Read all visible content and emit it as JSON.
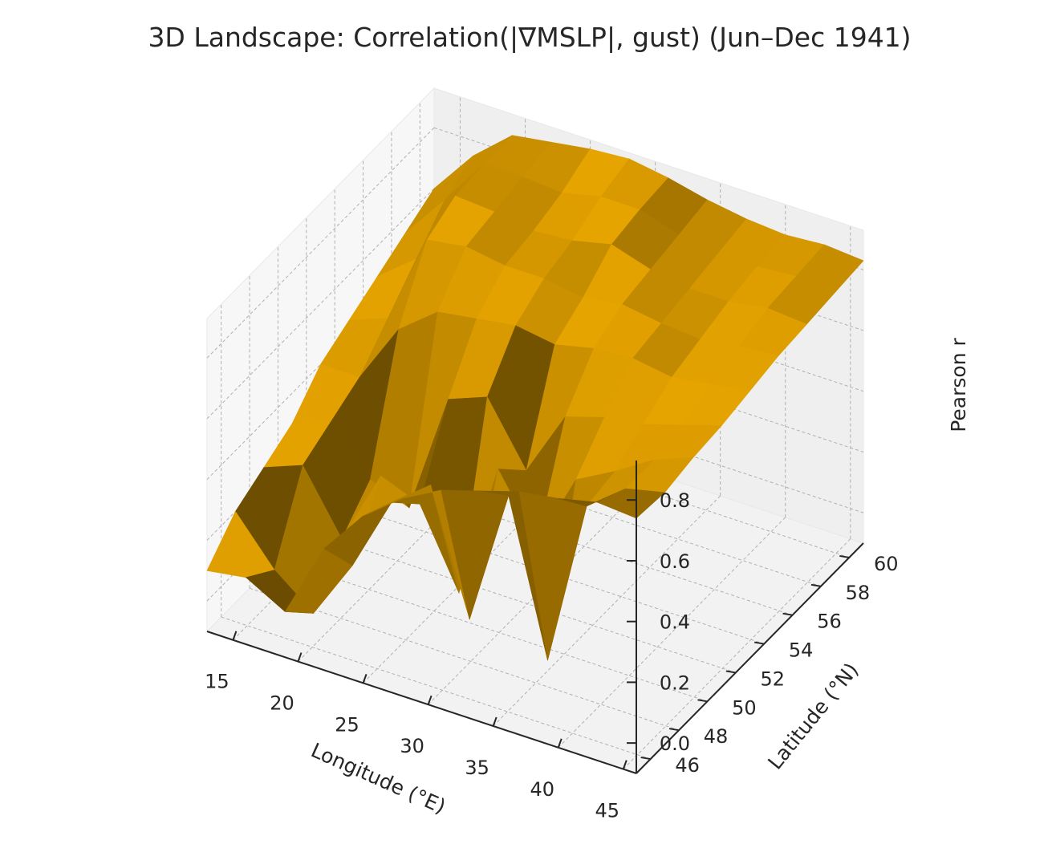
{
  "chart_data": {
    "type": "surface3d",
    "title": "3D Landscape: Correlation(|∇MSLP|, gust) (Jun–Dec 1941)",
    "xlabel": "Longitude (°E)",
    "ylabel": "Latitude (°N)",
    "zlabel": "Pearson r",
    "xlim": [
      13,
      46
    ],
    "ylim": [
      45,
      61
    ],
    "zlim": [
      -0.1,
      0.93
    ],
    "x_ticks": [
      15,
      20,
      25,
      30,
      35,
      40,
      45
    ],
    "y_ticks": [
      46,
      48,
      50,
      52,
      54,
      56,
      58,
      60
    ],
    "z_ticks": [
      0.0,
      0.2,
      0.4,
      0.6,
      0.8
    ],
    "x_tick_labels": [
      "15",
      "20",
      "25",
      "30",
      "35",
      "40",
      "45"
    ],
    "y_tick_labels": [
      "46",
      "48",
      "50",
      "52",
      "54",
      "56",
      "58",
      "60"
    ],
    "z_tick_labels": [
      "0.0",
      "0.2",
      "0.4",
      "0.6",
      "0.8"
    ],
    "grid": true,
    "surface_color": "#e6a400",
    "pane_color": "#f2f2f2",
    "grid_x": [
      13,
      16,
      19,
      22,
      25,
      28,
      31,
      34,
      37,
      40,
      43,
      46
    ],
    "grid_y": [
      45,
      47,
      49,
      51,
      53,
      55,
      57,
      59,
      61
    ],
    "z": [
      [
        0.1,
        0.12,
        0.05,
        0.3,
        0.45,
        0.55,
        0.62,
        0.66,
        0.7,
        0.72,
        0.75,
        0.74
      ],
      [
        0.2,
        0.05,
        -0.05,
        0.15,
        0.4,
        0.5,
        0.1,
        0.55,
        0.05,
        0.6,
        0.7,
        0.73
      ],
      [
        0.25,
        0.3,
        0.1,
        0.35,
        0.3,
        0.05,
        0.5,
        0.3,
        0.55,
        0.62,
        0.7,
        0.75
      ],
      [
        0.3,
        0.35,
        0.2,
        0.15,
        0.55,
        0.6,
        0.4,
        0.62,
        0.66,
        0.68,
        0.72,
        0.76
      ],
      [
        0.4,
        0.4,
        0.6,
        0.7,
        0.72,
        0.74,
        0.72,
        0.75,
        0.76,
        0.74,
        0.76,
        0.78
      ],
      [
        0.45,
        0.5,
        0.8,
        0.82,
        0.8,
        0.8,
        0.78,
        0.8,
        0.78,
        0.77,
        0.79,
        0.8
      ],
      [
        0.5,
        0.6,
        0.85,
        0.84,
        0.82,
        0.83,
        0.86,
        0.82,
        0.8,
        0.8,
        0.82,
        0.81
      ],
      [
        0.55,
        0.7,
        0.86,
        0.86,
        0.85,
        0.88,
        0.88,
        0.84,
        0.82,
        0.82,
        0.83,
        0.82
      ],
      [
        0.6,
        0.75,
        0.86,
        0.88,
        0.9,
        0.91,
        0.89,
        0.86,
        0.84,
        0.83,
        0.84,
        0.83
      ]
    ]
  }
}
